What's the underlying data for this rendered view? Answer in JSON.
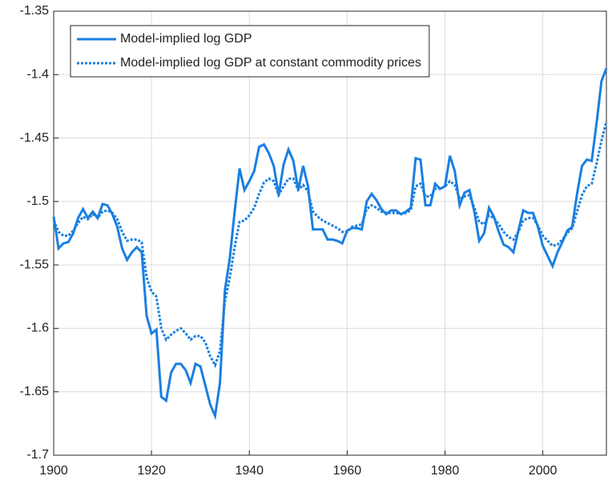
{
  "chart_data": {
    "type": "line",
    "x": [
      1900,
      1901,
      1902,
      1903,
      1904,
      1905,
      1906,
      1907,
      1908,
      1909,
      1910,
      1911,
      1912,
      1913,
      1914,
      1915,
      1916,
      1917,
      1918,
      1919,
      1920,
      1921,
      1922,
      1923,
      1924,
      1925,
      1926,
      1927,
      1928,
      1929,
      1930,
      1931,
      1932,
      1933,
      1934,
      1935,
      1936,
      1937,
      1938,
      1939,
      1940,
      1941,
      1942,
      1943,
      1944,
      1945,
      1946,
      1947,
      1948,
      1949,
      1950,
      1951,
      1952,
      1953,
      1954,
      1955,
      1956,
      1957,
      1958,
      1959,
      1960,
      1961,
      1962,
      1963,
      1964,
      1965,
      1966,
      1967,
      1968,
      1969,
      1970,
      1971,
      1972,
      1973,
      1974,
      1975,
      1976,
      1977,
      1978,
      1979,
      1980,
      1981,
      1982,
      1983,
      1984,
      1985,
      1986,
      1987,
      1988,
      1989,
      1990,
      1991,
      1992,
      1993,
      1994,
      1995,
      1996,
      1997,
      1998,
      1999,
      2000,
      2001,
      2002,
      2003,
      2004,
      2005,
      2006,
      2007,
      2008,
      2009,
      2010,
      2011,
      2012,
      2013
    ],
    "series": [
      {
        "name": "Model-implied log GDP",
        "color": "#1a7fe0",
        "dash": "solid",
        "values": [
          -1.512,
          -1.537,
          -1.533,
          -1.532,
          -1.525,
          -1.513,
          -1.506,
          -1.513,
          -1.508,
          -1.513,
          -1.502,
          -1.503,
          -1.51,
          -1.52,
          -1.537,
          -1.546,
          -1.54,
          -1.536,
          -1.54,
          -1.59,
          -1.604,
          -1.601,
          -1.654,
          -1.657,
          -1.635,
          -1.628,
          -1.628,
          -1.633,
          -1.643,
          -1.628,
          -1.63,
          -1.645,
          -1.66,
          -1.669,
          -1.643,
          -1.57,
          -1.545,
          -1.508,
          -1.474,
          -1.491,
          -1.484,
          -1.476,
          -1.457,
          -1.455,
          -1.462,
          -1.472,
          -1.495,
          -1.471,
          -1.459,
          -1.468,
          -1.491,
          -1.472,
          -1.488,
          -1.522,
          -1.522,
          -1.522,
          -1.53,
          -1.53,
          -1.531,
          -1.533,
          -1.523,
          -1.521,
          -1.521,
          -1.522,
          -1.5,
          -1.494,
          -1.499,
          -1.506,
          -1.51,
          -1.507,
          -1.507,
          -1.51,
          -1.508,
          -1.505,
          -1.466,
          -1.467,
          -1.503,
          -1.503,
          -1.486,
          -1.49,
          -1.488,
          -1.464,
          -1.476,
          -1.503,
          -1.493,
          -1.491,
          -1.508,
          -1.531,
          -1.525,
          -1.505,
          -1.512,
          -1.524,
          -1.534,
          -1.536,
          -1.54,
          -1.523,
          -1.507,
          -1.509,
          -1.509,
          -1.52,
          -1.535,
          -1.543,
          -1.551,
          -1.54,
          -1.532,
          -1.523,
          -1.52,
          -1.494,
          -1.472,
          -1.467,
          -1.468,
          -1.438,
          -1.405,
          -1.395
        ]
      },
      {
        "name": "Model-implied log GDP at constant commodity prices",
        "color": "#1a7fe0",
        "dash": "dotted",
        "values": [
          -1.515,
          -1.524,
          -1.527,
          -1.527,
          -1.523,
          -1.517,
          -1.512,
          -1.514,
          -1.51,
          -1.513,
          -1.508,
          -1.507,
          -1.509,
          -1.514,
          -1.524,
          -1.531,
          -1.53,
          -1.53,
          -1.532,
          -1.56,
          -1.571,
          -1.575,
          -1.6,
          -1.609,
          -1.605,
          -1.602,
          -1.6,
          -1.604,
          -1.609,
          -1.606,
          -1.606,
          -1.611,
          -1.622,
          -1.629,
          -1.618,
          -1.579,
          -1.56,
          -1.536,
          -1.516,
          -1.515,
          -1.511,
          -1.505,
          -1.494,
          -1.485,
          -1.482,
          -1.484,
          -1.495,
          -1.488,
          -1.482,
          -1.482,
          -1.491,
          -1.487,
          -1.492,
          -1.508,
          -1.512,
          -1.515,
          -1.517,
          -1.519,
          -1.521,
          -1.524,
          -1.524,
          -1.52,
          -1.519,
          -1.518,
          -1.506,
          -1.503,
          -1.505,
          -1.508,
          -1.509,
          -1.509,
          -1.509,
          -1.51,
          -1.509,
          -1.507,
          -1.488,
          -1.486,
          -1.496,
          -1.496,
          -1.49,
          -1.49,
          -1.488,
          -1.484,
          -1.487,
          -1.498,
          -1.496,
          -1.495,
          -1.505,
          -1.516,
          -1.518,
          -1.511,
          -1.513,
          -1.518,
          -1.524,
          -1.528,
          -1.53,
          -1.524,
          -1.515,
          -1.513,
          -1.513,
          -1.519,
          -1.527,
          -1.531,
          -1.535,
          -1.534,
          -1.53,
          -1.525,
          -1.521,
          -1.508,
          -1.495,
          -1.488,
          -1.486,
          -1.47,
          -1.452,
          -1.437
        ]
      }
    ],
    "xlim": [
      1900,
      2013
    ],
    "xticks": [
      1900,
      1920,
      1940,
      1960,
      1980,
      2000
    ],
    "ylim": [
      -1.7,
      -1.35
    ],
    "yticks": [
      -1.7,
      -1.65,
      -1.6,
      -1.55,
      -1.5,
      -1.45,
      -1.4,
      -1.35
    ],
    "grid": true,
    "legend": "upper-left"
  }
}
